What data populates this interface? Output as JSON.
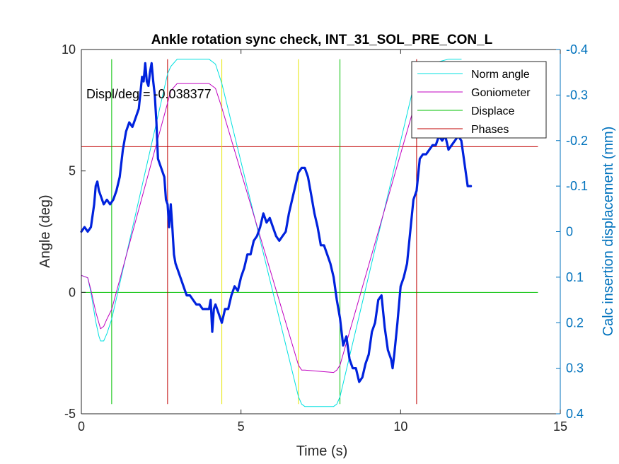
{
  "chart_data": {
    "type": "line",
    "title": "Ankle rotation sync check, INT_31_SOL_PRE_CON_L",
    "xlabel": "Time (s)",
    "ylabel": "Angle (deg)",
    "ylabel_right": "Calc insertion displacement (mm)",
    "xlim": [
      0,
      15
    ],
    "ylim": [
      -5,
      10
    ],
    "ylim_right": [
      0.4,
      -0.4
    ],
    "xticks": [
      0,
      5,
      10,
      15
    ],
    "yticks": [
      -5,
      0,
      5,
      10
    ],
    "yticks_right": [
      -0.4,
      -0.3,
      -0.2,
      -0.1,
      0,
      0.1,
      0.2,
      0.3,
      0.4
    ],
    "xtick_labels": [
      "0",
      "5",
      "10",
      "15"
    ],
    "ytick_labels": [
      "-5",
      "0",
      "5",
      "10"
    ],
    "ytick_labels_right": [
      "-0.4",
      "-0.3",
      "-0.2",
      "-0.1",
      "0",
      "0.1",
      "0.2",
      "0.3",
      "0.4"
    ],
    "annotation": "Displ/deg = -0.038377",
    "legend_position": "top-right",
    "legend": [
      {
        "name": "Norm angle",
        "color": "#00e0e0"
      },
      {
        "name": "Goniometer",
        "color": "#c000c0"
      },
      {
        "name": "Displace",
        "color": "#00c000"
      },
      {
        "name": "Phases",
        "color": "#c00000"
      }
    ],
    "colors": {
      "norm_angle": "#00e0e0",
      "goniometer": "#c000c0",
      "displace": "#00c000",
      "phases": "#c00000",
      "markers": "#e6e600",
      "displacement_trace": "#0022dd",
      "right_axis": "#0072bd"
    },
    "hlines": [
      {
        "series": "Displace",
        "y": 0
      },
      {
        "series": "Phases",
        "y": 6
      }
    ],
    "vlines": [
      {
        "series": "Displace",
        "x": 0.95
      },
      {
        "series": "Displace",
        "x": 8.1
      },
      {
        "series": "Phases",
        "x": 2.7
      },
      {
        "series": "Phases",
        "x": 10.5
      },
      {
        "series": "markers",
        "x": 4.4
      },
      {
        "series": "markers",
        "x": 6.8
      }
    ],
    "series": [
      {
        "name": "Norm angle",
        "axis": "left",
        "x": [
          0,
          0.2,
          0.3,
          0.45,
          0.55,
          0.6,
          0.7,
          0.8,
          0.95,
          2.7,
          2.8,
          3.0,
          4.0,
          4.2,
          4.4,
          6.8,
          6.9,
          7.0,
          7.9,
          8.0,
          8.1,
          10.5,
          10.6,
          11.5,
          11.9
        ],
        "y": [
          0.7,
          0.6,
          0.0,
          -1.2,
          -1.8,
          -2.0,
          -2.0,
          -1.7,
          -1.1,
          9.0,
          9.3,
          9.6,
          9.6,
          9.4,
          8.6,
          -4.3,
          -4.6,
          -4.7,
          -4.7,
          -4.6,
          -4.3,
          9.0,
          9.3,
          9.6,
          9.6
        ]
      },
      {
        "name": "Goniometer",
        "axis": "left",
        "x": [
          0,
          0.2,
          0.3,
          0.45,
          0.6,
          0.7,
          0.8,
          0.95,
          2.7,
          2.8,
          3.0,
          4.0,
          4.2,
          4.4,
          6.8,
          6.9,
          7.0,
          7.9,
          8.0,
          8.1,
          10.5,
          10.6,
          11.5,
          11.9
        ],
        "y": [
          0.7,
          0.6,
          0.1,
          -0.8,
          -1.5,
          -1.4,
          -1.1,
          -0.7,
          7.8,
          8.3,
          8.6,
          8.6,
          8.4,
          7.6,
          -3.0,
          -3.2,
          -3.2,
          -3.3,
          -3.2,
          -3.0,
          8.0,
          8.4,
          8.6,
          8.6
        ]
      },
      {
        "name": "Displacement",
        "axis": "right",
        "x": [
          0,
          0.1,
          0.2,
          0.3,
          0.4,
          0.45,
          0.5,
          0.55,
          0.6,
          0.7,
          0.8,
          0.9,
          1.0,
          1.1,
          1.2,
          1.3,
          1.4,
          1.5,
          1.6,
          1.7,
          1.8,
          1.9,
          1.95,
          2.0,
          2.05,
          2.1,
          2.15,
          2.2,
          2.25,
          2.3,
          2.35,
          2.4,
          2.5,
          2.6,
          2.65,
          2.7,
          2.75,
          2.8,
          2.85,
          2.9,
          2.95,
          3.0,
          3.1,
          3.2,
          3.3,
          3.4,
          3.5,
          3.6,
          3.7,
          3.8,
          3.9,
          4.0,
          4.05,
          4.1,
          4.15,
          4.2,
          4.3,
          4.4,
          4.5,
          4.6,
          4.7,
          4.8,
          4.9,
          5.0,
          5.1,
          5.2,
          5.3,
          5.4,
          5.5,
          5.6,
          5.7,
          5.8,
          5.9,
          6.0,
          6.1,
          6.2,
          6.3,
          6.4,
          6.5,
          6.6,
          6.7,
          6.8,
          6.9,
          7.0,
          7.1,
          7.2,
          7.3,
          7.4,
          7.5,
          7.6,
          7.7,
          7.8,
          7.9,
          8.0,
          8.1,
          8.2,
          8.3,
          8.4,
          8.5,
          8.6,
          8.7,
          8.8,
          8.9,
          9.0,
          9.1,
          9.2,
          9.3,
          9.4,
          9.5,
          9.6,
          9.7,
          9.75,
          9.8,
          9.9,
          10.0,
          10.1,
          10.2,
          10.3,
          10.4,
          10.5,
          10.6,
          10.7,
          10.8,
          10.9,
          11.0,
          11.1,
          11.2,
          11.3,
          11.4,
          11.5,
          11.6,
          11.7,
          11.8,
          11.9,
          12.0,
          12.1,
          12.2
        ],
        "y": [
          0.0,
          -0.01,
          0.0,
          -0.01,
          -0.06,
          -0.1,
          -0.11,
          -0.09,
          -0.08,
          -0.06,
          -0.07,
          -0.06,
          -0.07,
          -0.09,
          -0.12,
          -0.18,
          -0.22,
          -0.24,
          -0.23,
          -0.25,
          -0.27,
          -0.34,
          -0.33,
          -0.37,
          -0.33,
          -0.32,
          -0.35,
          -0.37,
          -0.33,
          -0.3,
          -0.24,
          -0.16,
          -0.14,
          -0.12,
          -0.07,
          -0.06,
          -0.01,
          -0.06,
          -0.01,
          0.05,
          0.07,
          0.08,
          0.1,
          0.12,
          0.14,
          0.14,
          0.15,
          0.16,
          0.16,
          0.17,
          0.17,
          0.17,
          0.15,
          0.22,
          0.17,
          0.16,
          0.18,
          0.2,
          0.17,
          0.17,
          0.14,
          0.12,
          0.13,
          0.1,
          0.08,
          0.05,
          0.05,
          0.02,
          0.01,
          -0.01,
          -0.04,
          -0.02,
          -0.03,
          -0.01,
          0.01,
          0.02,
          0.01,
          0.0,
          -0.04,
          -0.07,
          -0.1,
          -0.13,
          -0.14,
          -0.14,
          -0.12,
          -0.08,
          -0.04,
          -0.01,
          0.03,
          0.03,
          0.05,
          0.07,
          0.1,
          0.15,
          0.19,
          0.25,
          0.23,
          0.28,
          0.3,
          0.3,
          0.33,
          0.32,
          0.29,
          0.27,
          0.22,
          0.2,
          0.15,
          0.14,
          0.21,
          0.26,
          0.28,
          0.3,
          0.27,
          0.2,
          0.12,
          0.1,
          0.07,
          0.0,
          -0.07,
          -0.09,
          -0.16,
          -0.17,
          -0.17,
          -0.18,
          -0.19,
          -0.19,
          -0.21,
          -0.2,
          -0.21,
          -0.18,
          -0.19,
          -0.2,
          -0.21,
          -0.2,
          -0.15,
          -0.1,
          -0.1
        ]
      }
    ]
  }
}
